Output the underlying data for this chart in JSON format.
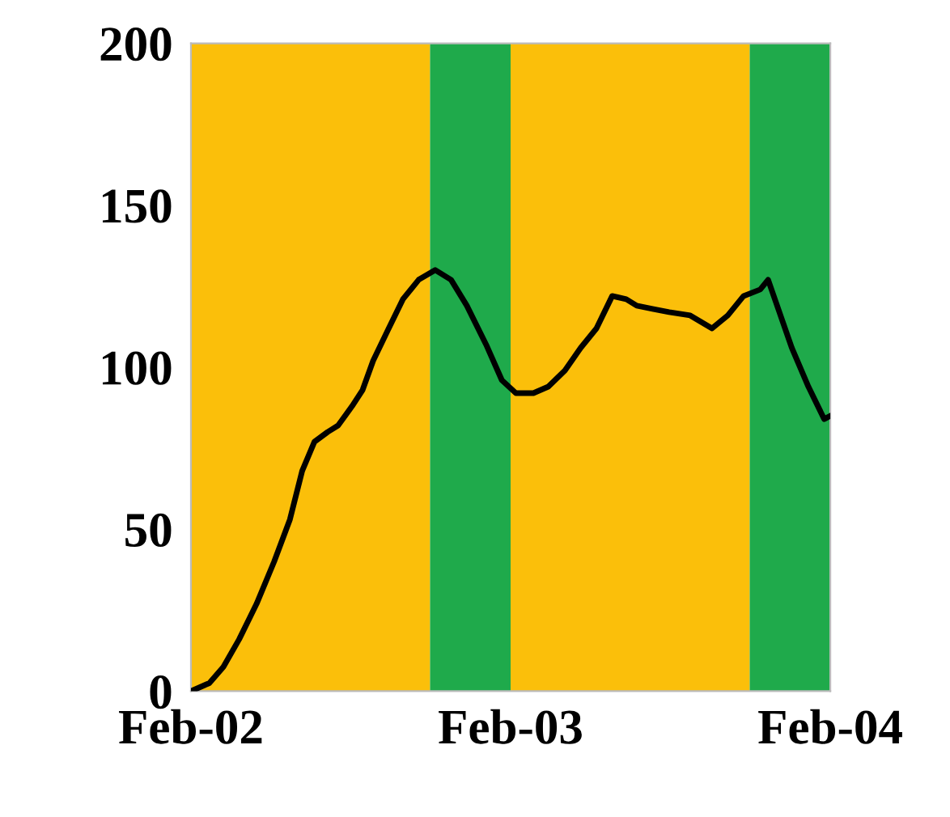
{
  "chart_data": {
    "type": "line",
    "x": [
      "2002-02-01",
      "2002-02-22",
      "2002-03-10",
      "2002-03-28",
      "2002-04-17",
      "2002-05-07",
      "2002-05-25",
      "2002-06-08",
      "2002-06-22",
      "2002-07-07",
      "2002-07-19",
      "2002-08-04",
      "2002-08-16",
      "2002-08-28",
      "2002-09-13",
      "2002-10-01",
      "2002-10-19",
      "2002-11-07",
      "2002-11-25",
      "2002-12-13",
      "2003-01-04",
      "2003-01-22",
      "2003-02-07",
      "2003-02-27",
      "2003-03-16",
      "2003-04-04",
      "2003-04-22",
      "2003-05-10",
      "2003-05-28",
      "2003-06-13",
      "2003-06-25",
      "2003-07-13",
      "2003-08-01",
      "2003-08-25",
      "2003-09-19",
      "2003-10-07",
      "2003-10-25",
      "2003-11-13",
      "2003-11-22",
      "2003-12-01",
      "2003-12-19",
      "2004-01-07",
      "2004-01-25",
      "2004-02-01"
    ],
    "series": [
      {
        "color": "#000000",
        "values": [
          0,
          2.5,
          7.5,
          16,
          27,
          40,
          53,
          68,
          77,
          80,
          82,
          88,
          93,
          102,
          111,
          121,
          127,
          130,
          127,
          119,
          107,
          96,
          92,
          92,
          94,
          99,
          106,
          112,
          122,
          121,
          119,
          118,
          117,
          116,
          112,
          116,
          122,
          124,
          127,
          120,
          106,
          94,
          84,
          85
        ]
      }
    ],
    "xlim": [
      "2002-02-01",
      "2004-02-01"
    ],
    "xticks": [
      {
        "value": "2002-02-01",
        "label": "Feb-02"
      },
      {
        "value": "2003-02-01",
        "label": "Feb-03"
      },
      {
        "value": "2004-02-01",
        "label": "Feb-04"
      }
    ],
    "ylim": [
      0,
      200
    ],
    "yticks": [
      0,
      50,
      100,
      150,
      200
    ],
    "bands": [
      {
        "axis": "x",
        "from": "2002-02-01",
        "to": "2002-11-01",
        "color": "#fbbf0a"
      },
      {
        "axis": "x",
        "from": "2002-11-01",
        "to": "2003-02-01",
        "color": "#1faa4b"
      },
      {
        "axis": "x",
        "from": "2003-02-01",
        "to": "2003-11-01",
        "color": "#fbbf0a"
      },
      {
        "axis": "x",
        "from": "2003-11-01",
        "to": "2004-02-01",
        "color": "#1faa4b"
      }
    ],
    "grid": false,
    "legend": false,
    "line_style": "solid",
    "marker": "none"
  }
}
